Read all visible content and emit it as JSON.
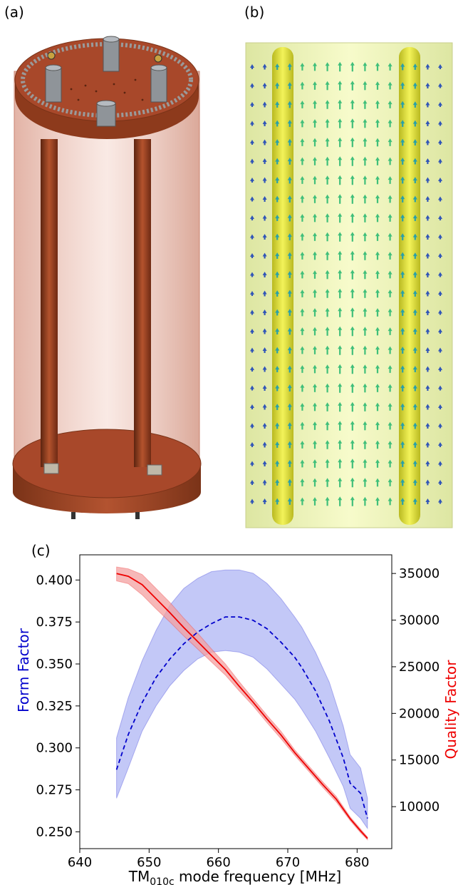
{
  "panels": {
    "a": "(a)",
    "b": "(b)",
    "c": "(c)"
  },
  "colors": {
    "copper": "#a8482a",
    "copper_dark": "#6e2a14",
    "glass": "#e9b5a6",
    "field_bg": "#eef5a8",
    "rod": "#e8e83a",
    "form_factor": "#0000cc",
    "form_band": "#aab0f3",
    "quality_factor": "#ee0000",
    "quality_band": "#f3a0a0"
  },
  "chart_data": {
    "type": "line",
    "xlabel_main": "TM",
    "xlabel_sub": "010c",
    "xlabel_rest": " mode frequency [MHz]",
    "ylabel_left": "Form Factor",
    "ylabel_right": "Quality Factor",
    "xlim": [
      640,
      685
    ],
    "ylim_left": [
      0.24,
      0.415
    ],
    "ylim_right": [
      5500,
      37000
    ],
    "xticks": [
      "640",
      "650",
      "660",
      "670",
      "680"
    ],
    "xtick_values": [
      640,
      650,
      660,
      670,
      680
    ],
    "yticks_left": [
      "0.250",
      "0.275",
      "0.300",
      "0.325",
      "0.350",
      "0.375",
      "0.400"
    ],
    "ytick_left_values": [
      0.25,
      0.275,
      0.3,
      0.325,
      0.35,
      0.375,
      0.4
    ],
    "yticks_right": [
      "10000",
      "15000",
      "20000",
      "25000",
      "30000",
      "35000"
    ],
    "ytick_right_values": [
      10000,
      15000,
      20000,
      25000,
      30000,
      35000
    ],
    "series": [
      {
        "axis": "left",
        "style": "dashed",
        "x": [
          645.3,
          647,
          649,
          651,
          653,
          655,
          657,
          659,
          661,
          663,
          665,
          667,
          669,
          671,
          672,
          674,
          676,
          678,
          679,
          680.5,
          681.5
        ],
        "y": [
          0.287,
          0.308,
          0.327,
          0.342,
          0.353,
          0.362,
          0.369,
          0.374,
          0.378,
          0.378,
          0.376,
          0.371,
          0.363,
          0.354,
          0.348,
          0.334,
          0.316,
          0.294,
          0.279,
          0.273,
          0.258
        ],
        "lower": [
          0.27,
          0.288,
          0.31,
          0.325,
          0.337,
          0.346,
          0.353,
          0.357,
          0.358,
          0.357,
          0.354,
          0.347,
          0.338,
          0.329,
          0.323,
          0.31,
          0.294,
          0.277,
          0.264,
          0.258,
          0.252
        ],
        "upper": [
          0.306,
          0.33,
          0.352,
          0.37,
          0.385,
          0.395,
          0.401,
          0.405,
          0.406,
          0.406,
          0.404,
          0.398,
          0.389,
          0.378,
          0.372,
          0.357,
          0.339,
          0.313,
          0.296,
          0.288,
          0.27
        ]
      },
      {
        "axis": "right",
        "style": "solid",
        "x": [
          645.3,
          647,
          649,
          651,
          653,
          655,
          657,
          659,
          661,
          663,
          665,
          667,
          669,
          671,
          673,
          675,
          677,
          679,
          680.5,
          681.5
        ],
        "y": [
          35000,
          34700,
          33800,
          32300,
          30800,
          29200,
          27700,
          26200,
          24700,
          22900,
          21200,
          19400,
          17700,
          15800,
          14100,
          12400,
          10800,
          8700,
          7400,
          6600
        ],
        "lower": [
          34200,
          33900,
          32700,
          31200,
          29800,
          28300,
          26900,
          25500,
          24100,
          22400,
          20800,
          19000,
          17300,
          15500,
          13800,
          12100,
          10500,
          8500,
          7200,
          6450
        ],
        "upper": [
          35700,
          35500,
          34900,
          33400,
          31900,
          30200,
          28600,
          26900,
          25300,
          23400,
          21600,
          19800,
          18100,
          16100,
          14400,
          12700,
          11100,
          8900,
          7600,
          6750
        ]
      }
    ]
  }
}
